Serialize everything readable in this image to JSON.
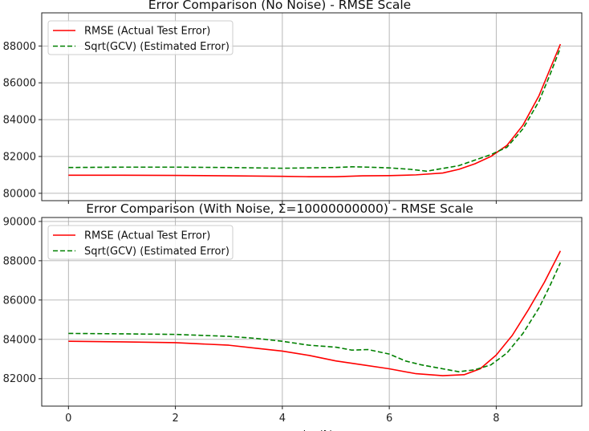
{
  "chart_data": [
    {
      "type": "line",
      "title": "Error Comparison (No Noise) - RMSE Scale",
      "xlabel": "",
      "ylabel": "",
      "xlim": [
        -0.5,
        9.6
      ],
      "ylim": [
        79600,
        89800
      ],
      "xticks": [
        0,
        2,
        4,
        6,
        8
      ],
      "xticks_shown": false,
      "yticks": [
        80000,
        82000,
        84000,
        86000,
        88000
      ],
      "ytick_labels": [
        "80000",
        "82000",
        "84000",
        "86000",
        "88000"
      ],
      "grid": true,
      "legend_position": "top-left",
      "series": [
        {
          "name": "RMSE (Actual Test Error)",
          "color": "#ff0000",
          "style": "solid",
          "x": [
            0,
            1,
            2,
            3,
            4,
            4.5,
            5,
            5.5,
            6,
            6.5,
            7,
            7.3,
            7.6,
            7.9,
            8.2,
            8.5,
            8.8,
            9.0,
            9.2
          ],
          "y": [
            80980,
            80980,
            80970,
            80950,
            80920,
            80900,
            80900,
            80950,
            80960,
            81000,
            81100,
            81300,
            81600,
            82000,
            82600,
            83700,
            85300,
            86700,
            88100
          ]
        },
        {
          "name": "Sqrt(GCV) (Estimated Error)",
          "color": "#008000",
          "style": "dashed",
          "x": [
            0,
            1,
            2,
            3,
            3.5,
            4,
            4.5,
            5,
            5.3,
            5.6,
            6,
            6.4,
            6.7,
            7.0,
            7.3,
            7.6,
            7.9,
            8.2,
            8.5,
            8.8,
            9.0,
            9.2
          ],
          "y": [
            81400,
            81420,
            81420,
            81400,
            81380,
            81360,
            81380,
            81400,
            81440,
            81420,
            81380,
            81300,
            81200,
            81350,
            81500,
            81800,
            82100,
            82500,
            83500,
            85000,
            86400,
            87900
          ]
        }
      ]
    },
    {
      "type": "line",
      "title": "Error Comparison (With Noise, Σ=10000000000) - RMSE Scale",
      "xlabel": "log(λ)",
      "ylabel": "",
      "xlim": [
        -0.5,
        9.6
      ],
      "ylim": [
        80600,
        90200
      ],
      "xticks": [
        0,
        2,
        4,
        6,
        8
      ],
      "xtick_labels": [
        "0",
        "2",
        "4",
        "6",
        "8"
      ],
      "xticks_shown": true,
      "yticks": [
        82000,
        84000,
        86000,
        88000,
        90000
      ],
      "ytick_labels": [
        "82000",
        "84000",
        "86000",
        "88000",
        "90000"
      ],
      "grid": true,
      "legend_position": "top-left",
      "series": [
        {
          "name": "RMSE (Actual Test Error)",
          "color": "#ff0000",
          "style": "solid",
          "x": [
            0,
            1,
            2,
            3,
            3.5,
            4,
            4.5,
            5,
            5.5,
            6,
            6.5,
            7,
            7.4,
            7.7,
            8.0,
            8.3,
            8.6,
            8.9,
            9.2
          ],
          "y": [
            83900,
            83870,
            83830,
            83700,
            83550,
            83400,
            83180,
            82900,
            82700,
            82500,
            82250,
            82150,
            82200,
            82500,
            83200,
            84200,
            85500,
            86900,
            88500
          ]
        },
        {
          "name": "Sqrt(GCV) (Estimated Error)",
          "color": "#008000",
          "style": "dashed",
          "x": [
            0,
            1,
            2,
            3,
            3.5,
            4,
            4.5,
            5,
            5.3,
            5.6,
            6,
            6.3,
            6.6,
            7.0,
            7.3,
            7.6,
            7.9,
            8.2,
            8.5,
            8.8,
            9.0,
            9.2
          ],
          "y": [
            84300,
            84280,
            84250,
            84150,
            84050,
            83900,
            83700,
            83600,
            83450,
            83480,
            83250,
            82900,
            82700,
            82500,
            82350,
            82450,
            82700,
            83300,
            84300,
            85600,
            86700,
            87900
          ]
        }
      ]
    }
  ]
}
